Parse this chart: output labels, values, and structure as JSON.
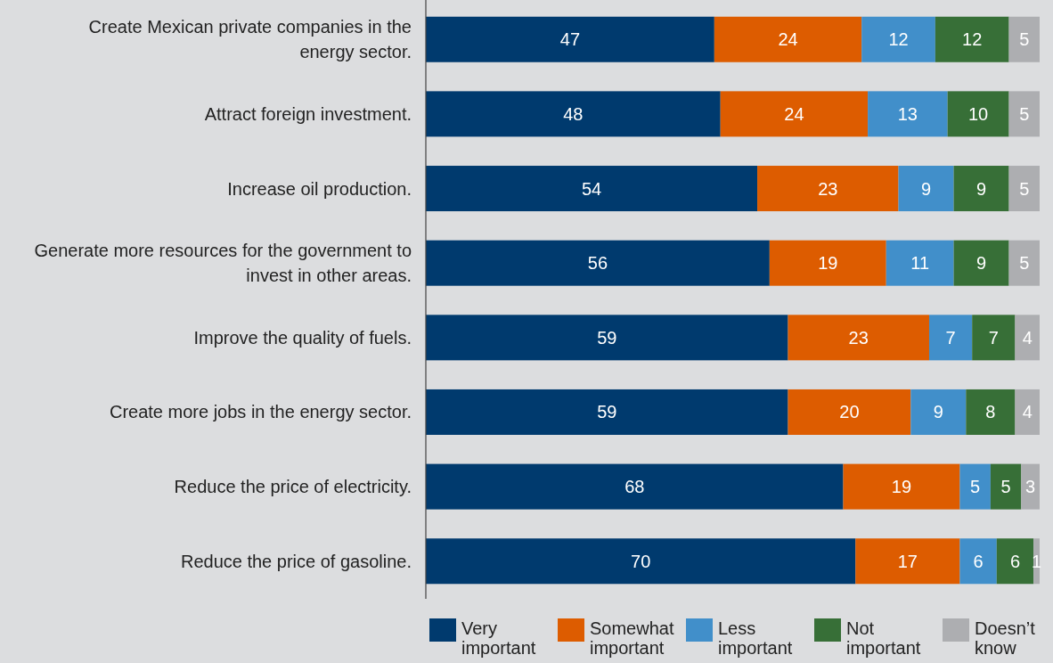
{
  "chart_data": {
    "type": "bar",
    "orientation": "horizontal",
    "stacked": true,
    "data_labels": true,
    "legend": "bottom",
    "tick_labels": "y",
    "xlim": [
      0,
      100
    ],
    "categories": [
      "Create Mexican private companies in the energy sector.",
      "Attract foreign investment.",
      "Increase oil production.",
      "Generate more resources for the government to invest in other areas.",
      "Improve the quality of fuels.",
      "Create more jobs in the energy sector.",
      "Reduce the price of electricity.",
      "Reduce the price of gasoline."
    ],
    "series": [
      {
        "name": "Very important",
        "color": "#003a6e",
        "values": [
          47,
          48,
          54,
          56,
          59,
          59,
          68,
          70
        ]
      },
      {
        "name": "Somewhat important",
        "color": "#dd5c00",
        "values": [
          24,
          24,
          23,
          19,
          23,
          20,
          19,
          17
        ]
      },
      {
        "name": "Less important",
        "color": "#418fca",
        "values": [
          12,
          13,
          9,
          11,
          7,
          9,
          5,
          6
        ]
      },
      {
        "name": "Not important",
        "color": "#376f37",
        "values": [
          12,
          10,
          9,
          9,
          7,
          8,
          5,
          6
        ]
      },
      {
        "name": "Doesn’t know",
        "color": "#adaeb1",
        "values": [
          5,
          5,
          5,
          5,
          4,
          4,
          3,
          1
        ]
      }
    ]
  }
}
